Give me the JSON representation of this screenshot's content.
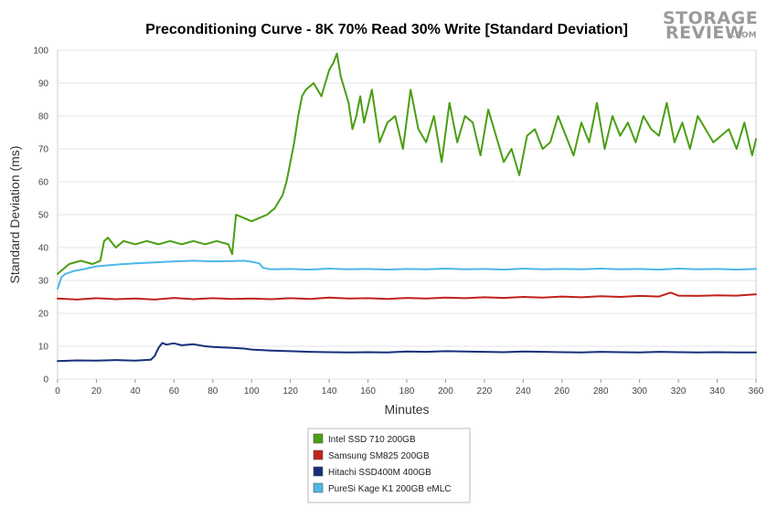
{
  "logo": {
    "line1": "STORAGE",
    "line2": "REVIEW",
    "suffix": ".COM"
  },
  "chart_data": {
    "type": "line",
    "title": "Preconditioning Curve - 8K 70% Read 30% Write [Standard Deviation]",
    "xlabel": "Minutes",
    "ylabel": "Standard Deviation (ms)",
    "xlim": [
      0,
      360
    ],
    "ylim": [
      0,
      100
    ],
    "xticks": [
      0,
      20,
      40,
      60,
      80,
      100,
      120,
      140,
      160,
      180,
      200,
      220,
      240,
      260,
      280,
      300,
      320,
      340,
      360
    ],
    "yticks": [
      0,
      10,
      20,
      30,
      40,
      50,
      60,
      70,
      80,
      90,
      100
    ],
    "grid": "horizontal",
    "legend_position": "bottom",
    "series": [
      {
        "name": "Intel SSD 710 200GB",
        "color": "#4a9e12",
        "x": [
          0,
          6,
          12,
          18,
          22,
          24,
          26,
          30,
          34,
          40,
          46,
          52,
          58,
          64,
          70,
          76,
          82,
          88,
          90,
          92,
          96,
          100,
          104,
          108,
          112,
          116,
          118,
          120,
          122,
          124,
          126,
          128,
          132,
          136,
          140,
          142,
          144,
          146,
          148,
          150,
          152,
          154,
          156,
          158,
          162,
          166,
          170,
          174,
          178,
          182,
          186,
          190,
          194,
          198,
          202,
          206,
          210,
          214,
          218,
          222,
          226,
          230,
          234,
          238,
          242,
          246,
          250,
          254,
          258,
          262,
          266,
          270,
          274,
          278,
          282,
          286,
          290,
          294,
          298,
          302,
          306,
          310,
          314,
          318,
          322,
          326,
          330,
          334,
          338,
          342,
          346,
          350,
          354,
          358,
          360
        ],
        "y": [
          32,
          35,
          36,
          35,
          36,
          42,
          43,
          40,
          42,
          41,
          42,
          41,
          42,
          41,
          42,
          41,
          42,
          41,
          38,
          50,
          49,
          48,
          49,
          50,
          52,
          56,
          60,
          66,
          72,
          80,
          86,
          88,
          90,
          86,
          94,
          96,
          99,
          92,
          88,
          84,
          76,
          80,
          86,
          78,
          88,
          72,
          78,
          80,
          70,
          88,
          76,
          72,
          80,
          66,
          84,
          72,
          80,
          78,
          68,
          82,
          74,
          66,
          70,
          62,
          74,
          76,
          70,
          72,
          80,
          74,
          68,
          78,
          72,
          84,
          70,
          80,
          74,
          78,
          72,
          80,
          76,
          74,
          84,
          72,
          78,
          70,
          80,
          76,
          72,
          74,
          76,
          70,
          78,
          68,
          73
        ]
      },
      {
        "name": "Samsung SM825 200GB",
        "color": "#c0221b",
        "x": [
          0,
          10,
          20,
          30,
          40,
          50,
          60,
          70,
          80,
          90,
          100,
          110,
          120,
          130,
          140,
          150,
          160,
          170,
          180,
          190,
          200,
          210,
          220,
          230,
          240,
          250,
          260,
          270,
          280,
          290,
          300,
          310,
          316,
          320,
          330,
          340,
          350,
          360
        ],
        "y": [
          24.5,
          24.2,
          24.6,
          24.3,
          24.5,
          24.2,
          24.7,
          24.3,
          24.6,
          24.4,
          24.5,
          24.3,
          24.6,
          24.4,
          24.8,
          24.5,
          24.6,
          24.4,
          24.7,
          24.5,
          24.8,
          24.6,
          24.9,
          24.7,
          25.0,
          24.8,
          25.1,
          24.9,
          25.2,
          25.0,
          25.3,
          25.1,
          26.3,
          25.4,
          25.3,
          25.5,
          25.4,
          25.8
        ]
      },
      {
        "name": "Hitachi SSD400M 400GB",
        "color": "#15307a",
        "x": [
          0,
          10,
          20,
          30,
          40,
          48,
          50,
          52,
          54,
          56,
          60,
          64,
          70,
          76,
          80,
          86,
          90,
          96,
          100,
          110,
          120,
          130,
          140,
          150,
          160,
          170,
          180,
          190,
          200,
          210,
          220,
          230,
          240,
          250,
          260,
          270,
          280,
          290,
          300,
          310,
          320,
          330,
          340,
          350,
          360
        ],
        "y": [
          5.5,
          5.7,
          5.6,
          5.8,
          5.6,
          5.9,
          7,
          9.5,
          11,
          10.5,
          10.9,
          10.3,
          10.6,
          10,
          9.8,
          9.6,
          9.5,
          9.3,
          9.0,
          8.7,
          8.5,
          8.3,
          8.2,
          8.1,
          8.2,
          8.1,
          8.4,
          8.3,
          8.5,
          8.4,
          8.3,
          8.2,
          8.4,
          8.3,
          8.2,
          8.1,
          8.3,
          8.2,
          8.1,
          8.3,
          8.2,
          8.1,
          8.2,
          8.1,
          8.1
        ]
      },
      {
        "name": "PureSi Kage K1 200GB eMLC",
        "color": "#4db8e8",
        "x": [
          0,
          2,
          4,
          8,
          14,
          20,
          30,
          40,
          50,
          60,
          70,
          80,
          90,
          96,
          100,
          104,
          106,
          110,
          120,
          130,
          140,
          150,
          160,
          170,
          180,
          190,
          200,
          210,
          220,
          230,
          240,
          250,
          260,
          270,
          280,
          290,
          300,
          310,
          320,
          330,
          340,
          350,
          360
        ],
        "y": [
          27.5,
          31,
          32,
          32.8,
          33.5,
          34.3,
          34.8,
          35.2,
          35.5,
          35.8,
          36,
          35.8,
          35.9,
          36,
          35.7,
          35.2,
          33.8,
          33.4,
          33.5,
          33.3,
          33.6,
          33.4,
          33.5,
          33.3,
          33.5,
          33.4,
          33.6,
          33.4,
          33.5,
          33.3,
          33.6,
          33.4,
          33.5,
          33.4,
          33.6,
          33.4,
          33.5,
          33.3,
          33.6,
          33.4,
          33.5,
          33.3,
          33.5
        ]
      }
    ]
  }
}
